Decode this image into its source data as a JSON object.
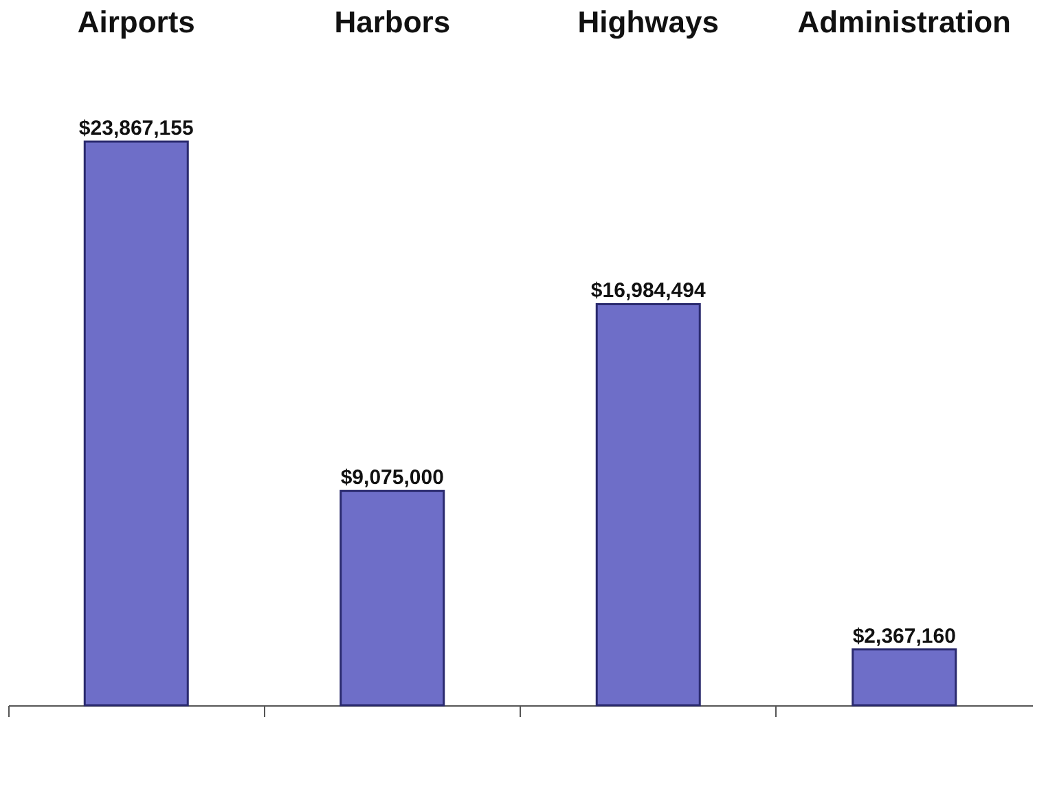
{
  "chart_data": {
    "type": "bar",
    "categories": [
      "Airports",
      "Harbors",
      "Highways",
      "Administration"
    ],
    "values": [
      23867155,
      9075000,
      16984494,
      2367160
    ],
    "value_labels": [
      "$23,867,155",
      "$9,075,000",
      "$16,984,494",
      "$2,367,160"
    ],
    "color": "#6e6ec8",
    "grid": false
  }
}
